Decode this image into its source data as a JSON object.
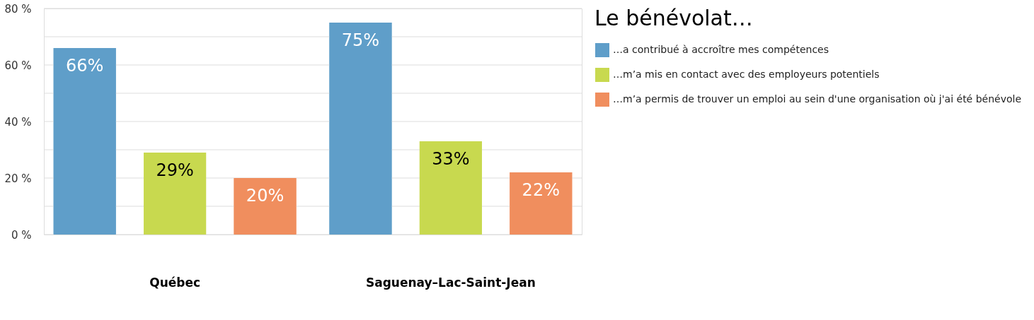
{
  "chart_data": {
    "type": "bar",
    "categories": [
      "Québec",
      "Saguenay–Lac-Saint-Jean"
    ],
    "legend_title": "Le bénévolat…",
    "series": [
      {
        "name": "…a contribué à accroître mes compétences",
        "color": "#5f9ec9",
        "values": [
          66,
          75
        ],
        "value_labels": [
          "66%",
          "75%"
        ]
      },
      {
        "name": "…m’a mis en contact avec des employeurs potentiels",
        "color": "#c8d94f",
        "values": [
          29,
          33
        ],
        "value_labels": [
          "29%",
          "33%"
        ]
      },
      {
        "name": "…m’a permis de trouver un emploi au sein d'une organisation où j'ai été bénévole",
        "color": "#f08e5e",
        "values": [
          20,
          22
        ],
        "value_labels": [
          "20%",
          "22%"
        ]
      }
    ],
    "ylim": [
      0,
      80
    ],
    "yticks": [
      {
        "value": 0,
        "label": "0 %"
      },
      {
        "value": 10,
        "label": null
      },
      {
        "value": 20,
        "label": "20 %"
      },
      {
        "value": 30,
        "label": null
      },
      {
        "value": 40,
        "label": "40 %"
      },
      {
        "value": 50,
        "label": null
      },
      {
        "value": 60,
        "label": "60 %"
      },
      {
        "value": 70,
        "label": null
      },
      {
        "value": 80,
        "label": "80 %"
      }
    ],
    "grid": "y",
    "legend": "right"
  }
}
